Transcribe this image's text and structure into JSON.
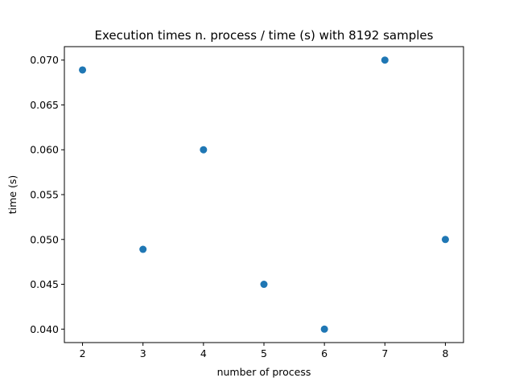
{
  "chart_data": {
    "type": "scatter",
    "title": "Execution times n. process / time (s) with 8192 samples",
    "xlabel": "number of process",
    "ylabel": "time (s)",
    "x": [
      2,
      3,
      4,
      5,
      6,
      7,
      8
    ],
    "y": [
      0.0689,
      0.0489,
      0.06,
      0.045,
      0.04,
      0.07,
      0.05
    ],
    "xlim": [
      1.7,
      8.3
    ],
    "ylim": [
      0.0385,
      0.0715
    ],
    "xticks": [
      2,
      3,
      4,
      5,
      6,
      7,
      8
    ],
    "yticks": [
      0.04,
      0.045,
      0.05,
      0.055,
      0.06,
      0.065,
      0.07
    ],
    "xtick_labels": [
      "2",
      "3",
      "4",
      "5",
      "6",
      "7",
      "8"
    ],
    "ytick_labels": [
      "0.040",
      "0.045",
      "0.050",
      "0.055",
      "0.060",
      "0.065",
      "0.070"
    ],
    "marker_color": "#1f77b4",
    "grid": false,
    "legend": "none"
  }
}
